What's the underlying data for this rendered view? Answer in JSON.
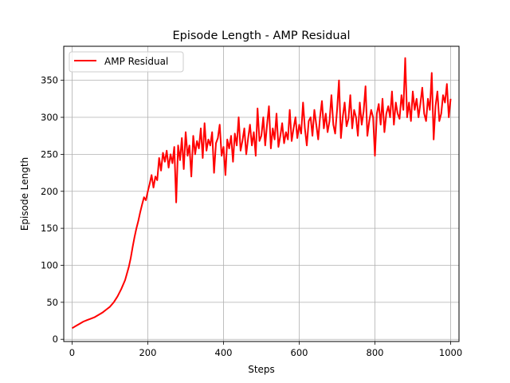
{
  "chart_data": {
    "type": "line",
    "title": "Episode Length - AMP Residual",
    "xlabel": "Steps",
    "ylabel": "Episode Length",
    "xlim": [
      -22,
      1022
    ],
    "ylim": [
      -3,
      396
    ],
    "grid": true,
    "legend_position": "top-left",
    "xticks": [
      0,
      200,
      400,
      600,
      800,
      1000
    ],
    "yticks": [
      0,
      50,
      100,
      150,
      200,
      250,
      300,
      350
    ],
    "series": [
      {
        "name": "AMP Residual",
        "color": "#ff0000",
        "x": [
          0,
          10,
          20,
          30,
          40,
          50,
          60,
          70,
          80,
          90,
          100,
          110,
          120,
          130,
          140,
          150,
          155,
          160,
          165,
          170,
          175,
          180,
          185,
          190,
          195,
          200,
          205,
          210,
          215,
          220,
          225,
          230,
          235,
          240,
          245,
          250,
          255,
          260,
          265,
          270,
          275,
          280,
          285,
          290,
          295,
          300,
          305,
          310,
          315,
          320,
          325,
          330,
          335,
          340,
          345,
          350,
          355,
          360,
          365,
          370,
          375,
          380,
          385,
          390,
          395,
          400,
          405,
          410,
          415,
          420,
          425,
          430,
          435,
          440,
          445,
          450,
          455,
          460,
          465,
          470,
          475,
          480,
          485,
          490,
          495,
          500,
          505,
          510,
          515,
          520,
          525,
          530,
          535,
          540,
          545,
          550,
          555,
          560,
          565,
          570,
          575,
          580,
          585,
          590,
          595,
          600,
          605,
          610,
          615,
          620,
          625,
          630,
          635,
          640,
          645,
          650,
          655,
          660,
          665,
          670,
          675,
          680,
          685,
          690,
          695,
          700,
          705,
          710,
          715,
          720,
          725,
          730,
          735,
          740,
          745,
          750,
          755,
          760,
          765,
          770,
          775,
          780,
          785,
          790,
          795,
          800,
          805,
          810,
          815,
          820,
          825,
          830,
          835,
          840,
          845,
          850,
          855,
          860,
          865,
          870,
          875,
          880,
          885,
          890,
          895,
          900,
          905,
          910,
          915,
          920,
          925,
          930,
          935,
          940,
          945,
          950,
          955,
          960,
          965,
          970,
          975,
          980,
          985,
          990,
          995,
          1000
        ],
        "values": [
          15,
          18,
          21,
          24,
          26,
          28,
          30,
          33,
          36,
          40,
          44,
          50,
          58,
          68,
          80,
          98,
          110,
          125,
          138,
          150,
          160,
          172,
          182,
          192,
          188,
          200,
          210,
          222,
          205,
          220,
          215,
          245,
          228,
          252,
          240,
          255,
          232,
          250,
          238,
          260,
          185,
          262,
          242,
          272,
          230,
          280,
          248,
          262,
          220,
          275,
          250,
          268,
          258,
          285,
          245,
          292,
          255,
          270,
          262,
          280,
          225,
          265,
          272,
          290,
          248,
          260,
          222,
          270,
          258,
          275,
          240,
          278,
          262,
          300,
          255,
          268,
          285,
          250,
          272,
          290,
          262,
          280,
          248,
          312,
          268,
          275,
          300,
          262,
          290,
          315,
          258,
          285,
          270,
          305,
          260,
          275,
          292,
          265,
          280,
          270,
          310,
          268,
          285,
          300,
          272,
          290,
          278,
          320,
          285,
          262,
          295,
          300,
          275,
          310,
          290,
          270,
          300,
          322,
          285,
          305,
          280,
          295,
          330,
          290,
          278,
          310,
          350,
          272,
          300,
          320,
          288,
          298,
          330,
          285,
          310,
          300,
          275,
          320,
          290,
          308,
          342,
          275,
          295,
          310,
          300,
          248,
          305,
          318,
          290,
          325,
          280,
          305,
          315,
          300,
          335,
          290,
          320,
          305,
          298,
          330,
          310,
          380,
          300,
          320,
          295,
          335,
          310,
          325,
          300,
          318,
          340,
          305,
          295,
          325,
          310,
          360,
          270,
          315,
          335,
          295,
          305,
          330,
          320,
          345,
          300,
          325
        ]
      }
    ]
  }
}
